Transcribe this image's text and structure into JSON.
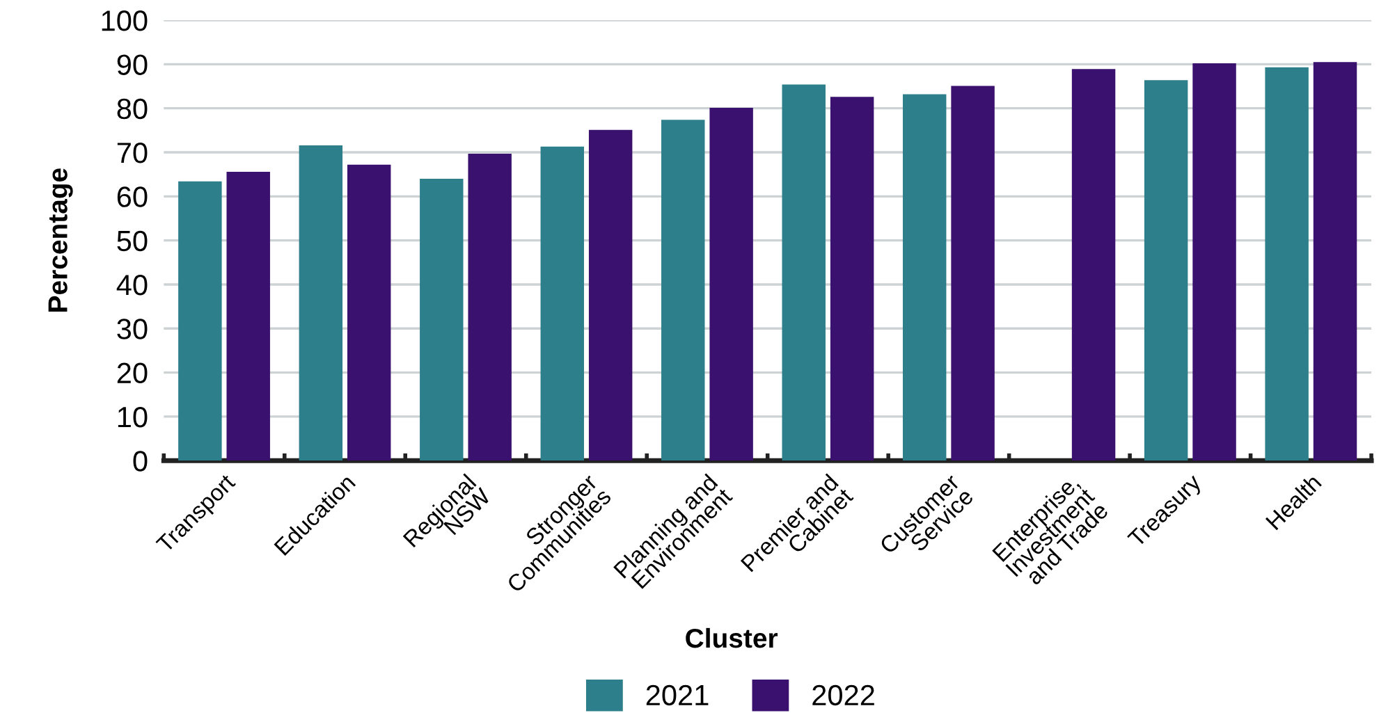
{
  "chart_data": {
    "type": "bar",
    "xlabel": "Cluster",
    "ylabel": "Percentage",
    "categories": [
      "Transport",
      "Education",
      "Regional\nNSW",
      "Stronger\nCommunities",
      "Planning and\nEnvironment",
      "Premier and\nCabinet",
      "Customer\nService",
      "Enterprise,\nInvestment\nand Trade",
      "Treasury",
      "Health"
    ],
    "series": [
      {
        "name": "2021",
        "color": "#2e7f8c",
        "values": [
          63.4,
          71.6,
          64.0,
          71.3,
          77.4,
          85.4,
          83.2,
          null,
          86.4,
          89.3
        ]
      },
      {
        "name": "2022",
        "color": "#3a116e",
        "values": [
          65.6,
          67.2,
          69.7,
          75.1,
          80.1,
          82.6,
          85.1,
          88.9,
          90.2,
          90.5
        ]
      }
    ],
    "ylim": [
      0,
      100
    ],
    "yticks": [
      0,
      10,
      20,
      30,
      40,
      50,
      60,
      70,
      80,
      90,
      100
    ],
    "grid": "y",
    "legend": "bottom"
  }
}
